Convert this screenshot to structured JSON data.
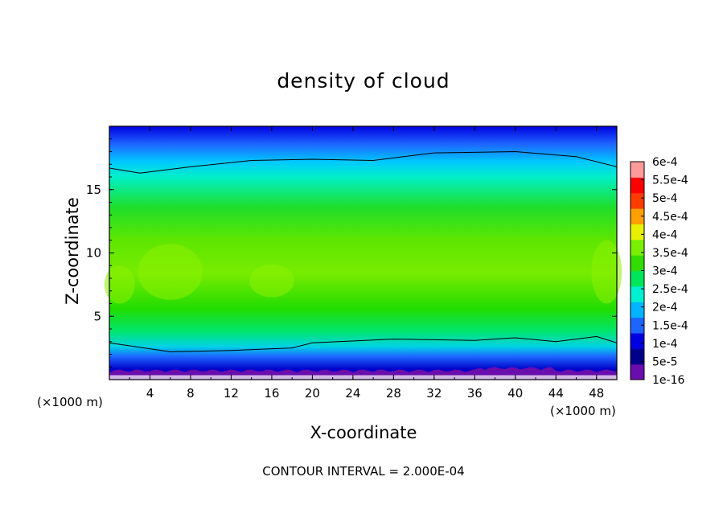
{
  "chart_data": {
    "type": "heatmap",
    "title": "density of cloud",
    "xlabel": "X-coordinate",
    "ylabel": "Z-coordinate",
    "x_unit": "(×1000 m)",
    "xlim": [
      0,
      50
    ],
    "ylim": [
      0,
      20
    ],
    "x_ticks": [
      "4",
      "8",
      "12",
      "16",
      "20",
      "24",
      "28",
      "32",
      "36",
      "40",
      "44",
      "48"
    ],
    "y_ticks": [
      "5",
      "10",
      "15"
    ],
    "colorbar": {
      "labels": [
        "1e-16",
        "5e-5",
        "1e-4",
        "1.5e-4",
        "2e-4",
        "2.5e-4",
        "3e-4",
        "3.5e-4",
        "4e-4",
        "4.5e-4",
        "5e-4",
        "5.5e-4",
        "6e-4"
      ],
      "colors": [
        "#6a0dad",
        "#00008b",
        "#0000e0",
        "#1e64ff",
        "#00b4ff",
        "#00f0d2",
        "#00e65a",
        "#32dc00",
        "#78f000",
        "#e6f000",
        "#ffa000",
        "#ff3c00",
        "#ff0000",
        "#ff9a9a"
      ]
    },
    "contour_interval": "CONTOUR INTERVAL = 2.000E-04",
    "lower_contour_z": [
      [
        0,
        2.9
      ],
      [
        6,
        2.2
      ],
      [
        12,
        2.3
      ],
      [
        18,
        2.5
      ],
      [
        20,
        2.9
      ],
      [
        28,
        3.2
      ],
      [
        36,
        3.1
      ],
      [
        40,
        3.3
      ],
      [
        44,
        3.0
      ],
      [
        48,
        3.4
      ],
      [
        50,
        2.9
      ]
    ],
    "upper_contour_z": [
      [
        0,
        16.7
      ],
      [
        3,
        16.3
      ],
      [
        8,
        16.8
      ],
      [
        14,
        17.3
      ],
      [
        20,
        17.4
      ],
      [
        26,
        17.3
      ],
      [
        32,
        17.9
      ],
      [
        40,
        18.0
      ],
      [
        46,
        17.6
      ],
      [
        50,
        16.8
      ]
    ]
  }
}
